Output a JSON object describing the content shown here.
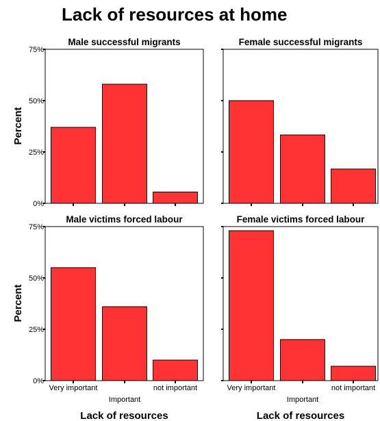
{
  "title": "Lack of resources at home",
  "chart_data": {
    "type": "bar",
    "title": "Lack of resources at home",
    "categories": [
      "Very important",
      "Important",
      "not important"
    ],
    "ylabel": "Percent",
    "xlabel": "Lack of resources",
    "y_ticks": [
      "0%",
      "25%",
      "50%",
      "75%"
    ],
    "ylim": [
      0,
      75
    ],
    "bar_color": "#ff3333",
    "panels": [
      {
        "title": "Male successful migrants",
        "values": [
          37,
          58,
          5.5
        ]
      },
      {
        "title": "Female successful migrants",
        "values": [
          50,
          33.3,
          16.7
        ]
      },
      {
        "title": "Male victims forced labour",
        "values": [
          55,
          36,
          10
        ]
      },
      {
        "title": "Female victims forced labour",
        "values": [
          73,
          20,
          7
        ]
      }
    ]
  }
}
